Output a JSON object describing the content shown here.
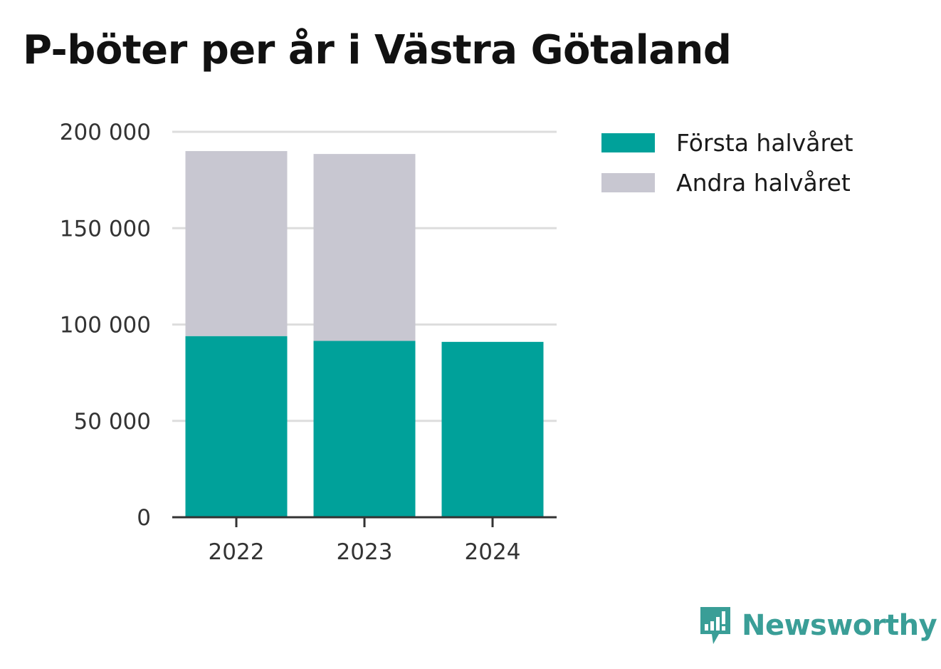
{
  "chart_data": {
    "type": "bar",
    "stacked": true,
    "title": "P-böter per år i Västra Götaland",
    "categories": [
      "2022",
      "2023",
      "2024"
    ],
    "series": [
      {
        "name": "Första halvåret",
        "color": "#00a19a",
        "values": [
          94000,
          91500,
          91000
        ]
      },
      {
        "name": "Andra halvåret",
        "color": "#c8c7d1",
        "values": [
          96000,
          97000,
          0
        ]
      }
    ],
    "ylim": [
      0,
      200000
    ],
    "yticks": [
      0,
      50000,
      100000,
      150000,
      200000
    ],
    "ytick_labels": [
      "0",
      "50 000",
      "100 000",
      "150 000",
      "200 000"
    ],
    "grid": true,
    "legend_position": "right"
  },
  "brand": {
    "name": "Newsworthy",
    "icon": "newsworthy-logo-icon",
    "color": "#3a9e97"
  }
}
